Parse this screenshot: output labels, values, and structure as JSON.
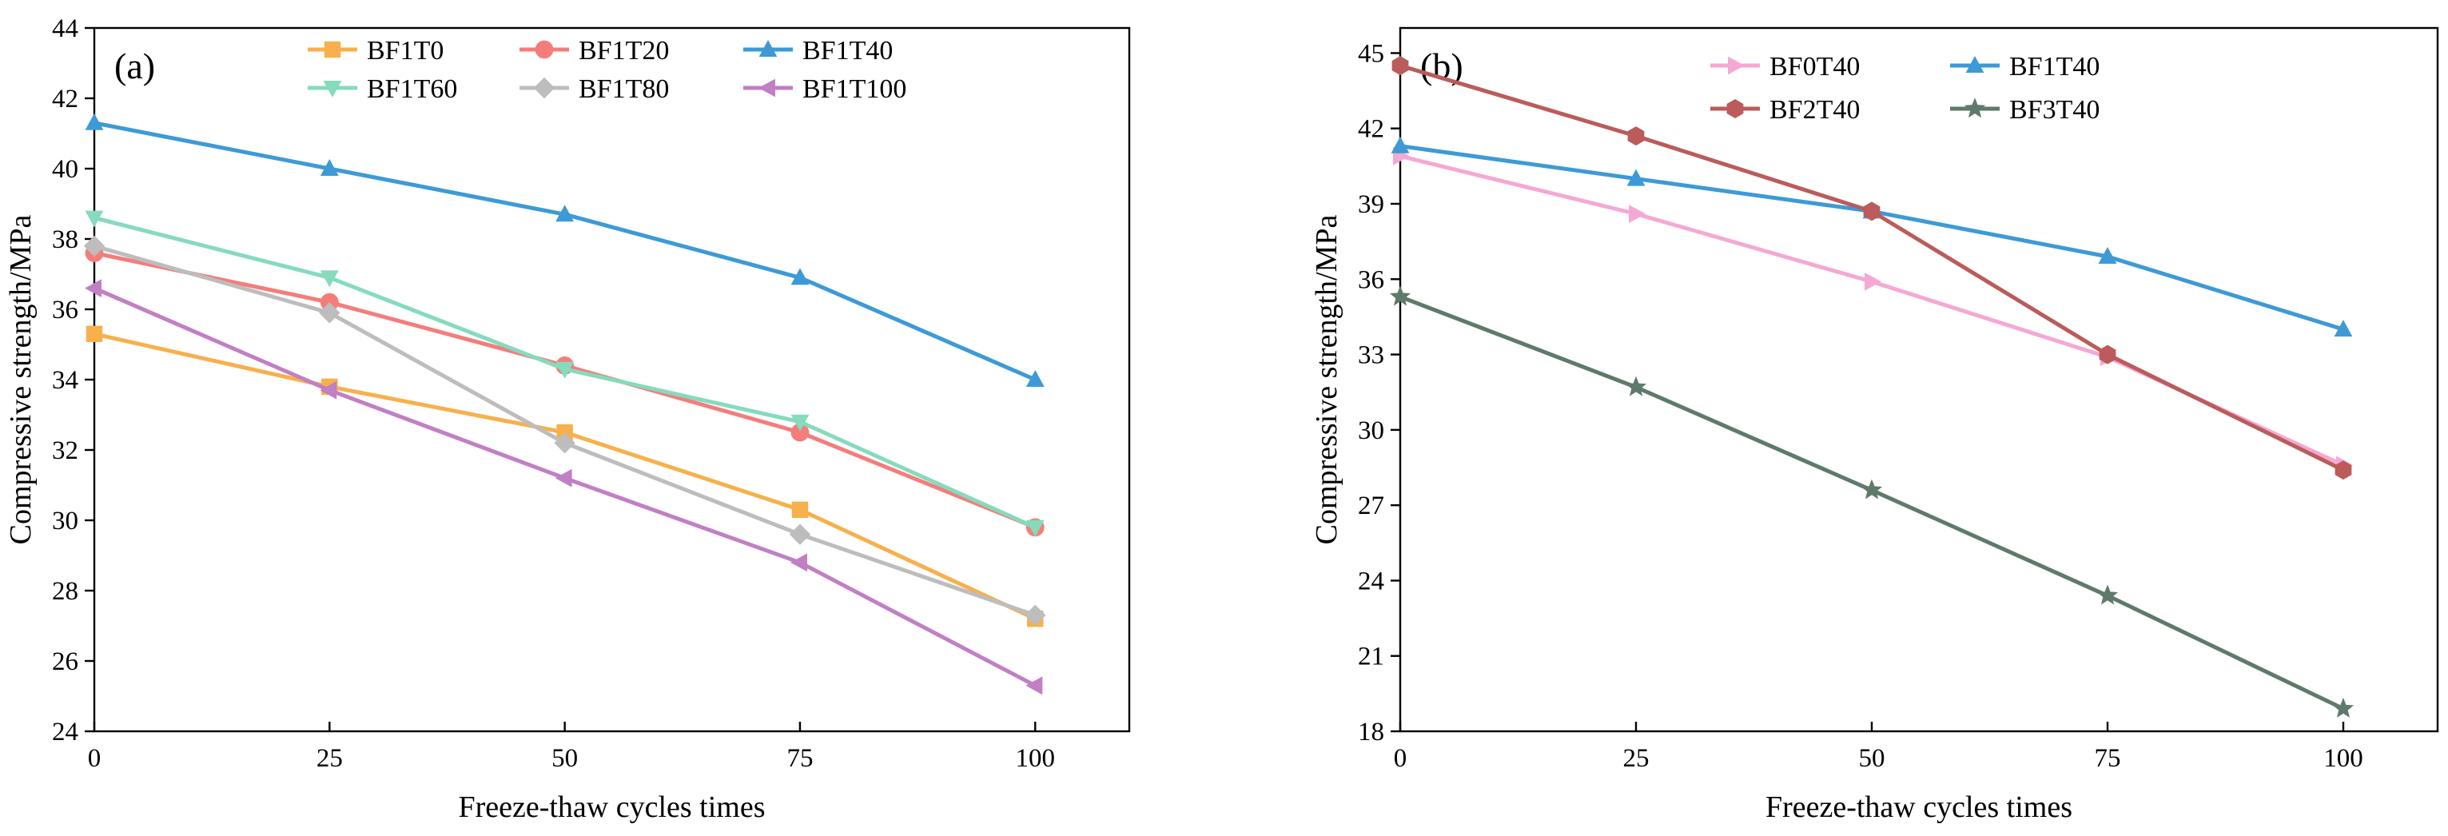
{
  "chart_data": [
    {
      "type": "line",
      "panel_label": "(a)",
      "xlabel": "Freeze-thaw cycles times",
      "ylabel": "Compressive strength/MPa",
      "x": [
        0,
        25,
        50,
        75,
        100
      ],
      "x_ticks": [
        "0",
        "25",
        "50",
        "75",
        "100"
      ],
      "xlim": [
        0,
        110
      ],
      "ylim": [
        24,
        44
      ],
      "y_ticks": [
        "24",
        "26",
        "28",
        "30",
        "32",
        "34",
        "36",
        "38",
        "40",
        "42",
        "44"
      ],
      "grid": false,
      "legend_position": "top",
      "series": [
        {
          "name": "BF1T0",
          "values": [
            35.3,
            33.8,
            32.5,
            30.3,
            27.2
          ],
          "color": "#f7b04c",
          "marker": "square"
        },
        {
          "name": "BF1T20",
          "values": [
            37.6,
            36.2,
            34.4,
            32.5,
            29.8
          ],
          "color": "#f47d7b",
          "marker": "circle"
        },
        {
          "name": "BF1T40",
          "values": [
            41.3,
            40.0,
            38.7,
            36.9,
            34.0
          ],
          "color": "#3d9ad6",
          "marker": "triangle-up"
        },
        {
          "name": "BF1T60",
          "values": [
            38.6,
            36.9,
            34.3,
            32.8,
            29.8
          ],
          "color": "#85dbbb",
          "marker": "triangle-down"
        },
        {
          "name": "BF1T80",
          "values": [
            37.8,
            35.9,
            32.2,
            29.6,
            27.3
          ],
          "color": "#bdbdbd",
          "marker": "diamond"
        },
        {
          "name": "BF1T100",
          "values": [
            36.6,
            33.7,
            31.2,
            28.8,
            25.3
          ],
          "color": "#c17fc4",
          "marker": "triangle-left"
        }
      ]
    },
    {
      "type": "line",
      "panel_label": "(b)",
      "xlabel": "Freeze-thaw cycles times",
      "ylabel": "Compressive strength/MPa",
      "x": [
        0,
        25,
        50,
        75,
        100
      ],
      "x_ticks": [
        "0",
        "25",
        "50",
        "75",
        "100"
      ],
      "xlim": [
        0,
        110
      ],
      "ylim": [
        18,
        46
      ],
      "y_ticks": [
        "18",
        "21",
        "24",
        "27",
        "30",
        "33",
        "36",
        "39",
        "42",
        "45"
      ],
      "grid": false,
      "legend_position": "top",
      "series": [
        {
          "name": "BF0T40",
          "values": [
            40.9,
            38.6,
            35.9,
            32.9,
            28.6
          ],
          "color": "#f5a8d3",
          "marker": "triangle-right"
        },
        {
          "name": "BF1T40",
          "values": [
            41.3,
            40.0,
            38.7,
            36.9,
            34.0
          ],
          "color": "#3d9ad6",
          "marker": "triangle-up"
        },
        {
          "name": "BF2T40",
          "values": [
            44.5,
            41.7,
            38.7,
            33.0,
            28.4
          ],
          "color": "#bb5b5b",
          "marker": "hexagon"
        },
        {
          "name": "BF3T40",
          "values": [
            35.3,
            31.7,
            27.6,
            23.4,
            18.9
          ],
          "color": "#5e7a6a",
          "marker": "star"
        }
      ]
    }
  ]
}
